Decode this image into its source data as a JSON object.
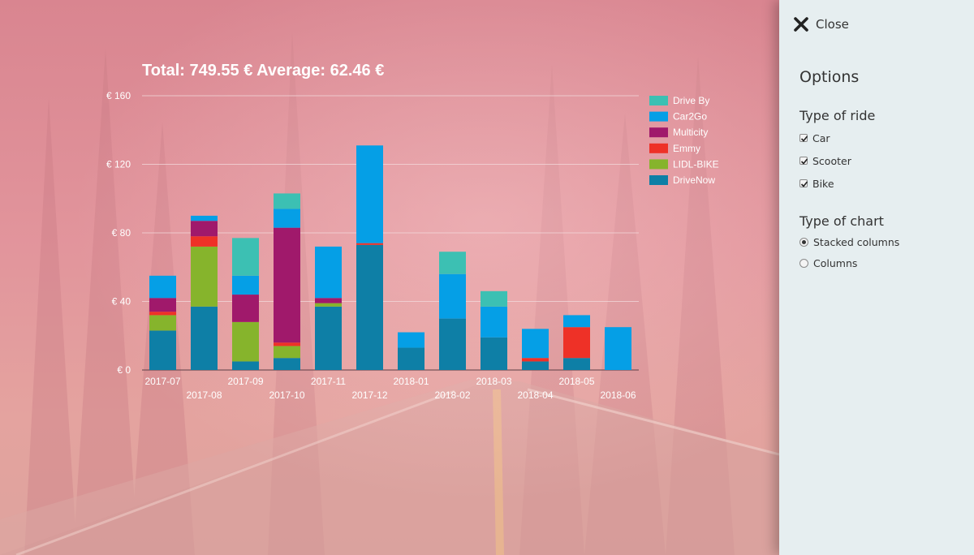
{
  "chart_header": "Total: 749.55 € Average: 62.46 €",
  "chart_data": {
    "type": "bar",
    "stacked": true,
    "categories": [
      "2017-07",
      "2017-08",
      "2017-09",
      "2017-10",
      "2017-11",
      "2017-12",
      "2018-01",
      "2018-02",
      "2018-03",
      "2018-04",
      "2018-05",
      "2018-06"
    ],
    "y_ticks": [
      "€ 0",
      "€ 40",
      "€ 80",
      "€ 120",
      "€ 160"
    ],
    "ylim": [
      0,
      160
    ],
    "grid": true,
    "legend_position": "top-right",
    "series": [
      {
        "name": "DriveNow",
        "color": "#0e7fa6",
        "values": [
          23,
          37,
          5,
          7,
          37,
          73,
          13,
          30,
          19,
          5,
          7,
          0
        ]
      },
      {
        "name": "LIDL-BIKE",
        "color": "#86b42c",
        "values": [
          9,
          35,
          23,
          7,
          2,
          0,
          0,
          0,
          0,
          0,
          0,
          0
        ]
      },
      {
        "name": "Emmy",
        "color": "#ee3127",
        "values": [
          2,
          6,
          0,
          2,
          0,
          1,
          0,
          0,
          0,
          2,
          18,
          0
        ]
      },
      {
        "name": "Multicity",
        "color": "#a0196b",
        "values": [
          8,
          9,
          16,
          67,
          3,
          0,
          0,
          0,
          0,
          0,
          0,
          0
        ]
      },
      {
        "name": "Car2Go",
        "color": "#059fe6",
        "values": [
          13,
          3,
          11,
          11,
          30,
          57,
          9,
          26,
          18,
          17,
          7,
          25
        ]
      },
      {
        "name": "Drive By",
        "color": "#3cc0b3",
        "values": [
          0,
          0,
          22,
          9,
          0,
          0,
          0,
          13,
          9,
          0,
          0,
          0
        ]
      }
    ]
  },
  "panel": {
    "close_label": "Close",
    "options_title": "Options",
    "ride_title": "Type of ride",
    "ride_options": [
      {
        "label": "Car",
        "checked": true
      },
      {
        "label": "Scooter",
        "checked": true
      },
      {
        "label": "Bike",
        "checked": true
      }
    ],
    "chart_type_title": "Type of chart",
    "chart_type_options": [
      {
        "label": "Stacked columns",
        "selected": true
      },
      {
        "label": "Columns",
        "selected": false
      }
    ]
  }
}
